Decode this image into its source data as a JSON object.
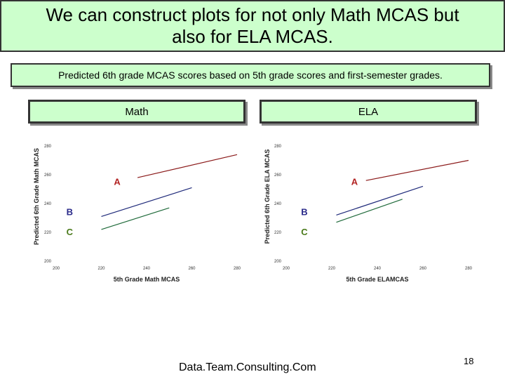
{
  "slide": {
    "title": "We can construct plots for not only Math MCAS but also for ELA MCAS.",
    "subtitle": "Predicted 6th grade MCAS scores based on 5th grade scores and first-semester grades.",
    "footer": "Data.Team.Consulting.Com",
    "page_number": "18"
  },
  "chart_data": [
    {
      "type": "line",
      "panel_label": "Math",
      "xlabel": "5th Grade Math MCAS",
      "ylabel": "Predicted 6th Grade Math MCAS",
      "xlim": [
        200,
        280
      ],
      "ylim": [
        200,
        280
      ],
      "x_ticks": [
        "200",
        "220",
        "240",
        "260",
        "280"
      ],
      "y_ticks": [
        "200",
        "220",
        "240",
        "260",
        "280"
      ],
      "grid": false,
      "series": [
        {
          "name": "A",
          "color": "#8b1a1a",
          "x": [
            236,
            280
          ],
          "y": [
            258,
            274
          ]
        },
        {
          "name": "B",
          "color": "#1f2a7a",
          "x": [
            220,
            260
          ],
          "y": [
            231,
            251
          ]
        },
        {
          "name": "C",
          "color": "#1f6a3a",
          "x": [
            220,
            250
          ],
          "y": [
            222,
            237
          ]
        }
      ],
      "annotations": [
        {
          "text": "A",
          "color": "#b22222",
          "x": 227,
          "y": 253
        },
        {
          "text": "B",
          "color": "#2a2a8a",
          "x": 206,
          "y": 232
        },
        {
          "text": "C",
          "color": "#4a7a1a",
          "x": 206,
          "y": 218
        }
      ]
    },
    {
      "type": "line",
      "panel_label": "ELA",
      "xlabel": "5th Grade ELAMCAS",
      "ylabel": "Predicted 6th Grade ELA MCAS",
      "xlim": [
        200,
        280
      ],
      "ylim": [
        200,
        280
      ],
      "x_ticks": [
        "200",
        "220",
        "240",
        "260",
        "280"
      ],
      "y_ticks": [
        "200",
        "220",
        "240",
        "260",
        "280"
      ],
      "grid": false,
      "series": [
        {
          "name": "A",
          "color": "#8b1a1a",
          "x": [
            235,
            280
          ],
          "y": [
            256,
            270
          ]
        },
        {
          "name": "B",
          "color": "#1f2a7a",
          "x": [
            222,
            260
          ],
          "y": [
            232,
            252
          ]
        },
        {
          "name": "C",
          "color": "#1f6a3a",
          "x": [
            222,
            251
          ],
          "y": [
            227,
            243
          ]
        }
      ],
      "annotations": [
        {
          "text": "A",
          "color": "#b22222",
          "x": 230,
          "y": 253
        },
        {
          "text": "B",
          "color": "#2a2a8a",
          "x": 208,
          "y": 232
        },
        {
          "text": "C",
          "color": "#4a7a1a",
          "x": 208,
          "y": 218
        }
      ]
    }
  ]
}
